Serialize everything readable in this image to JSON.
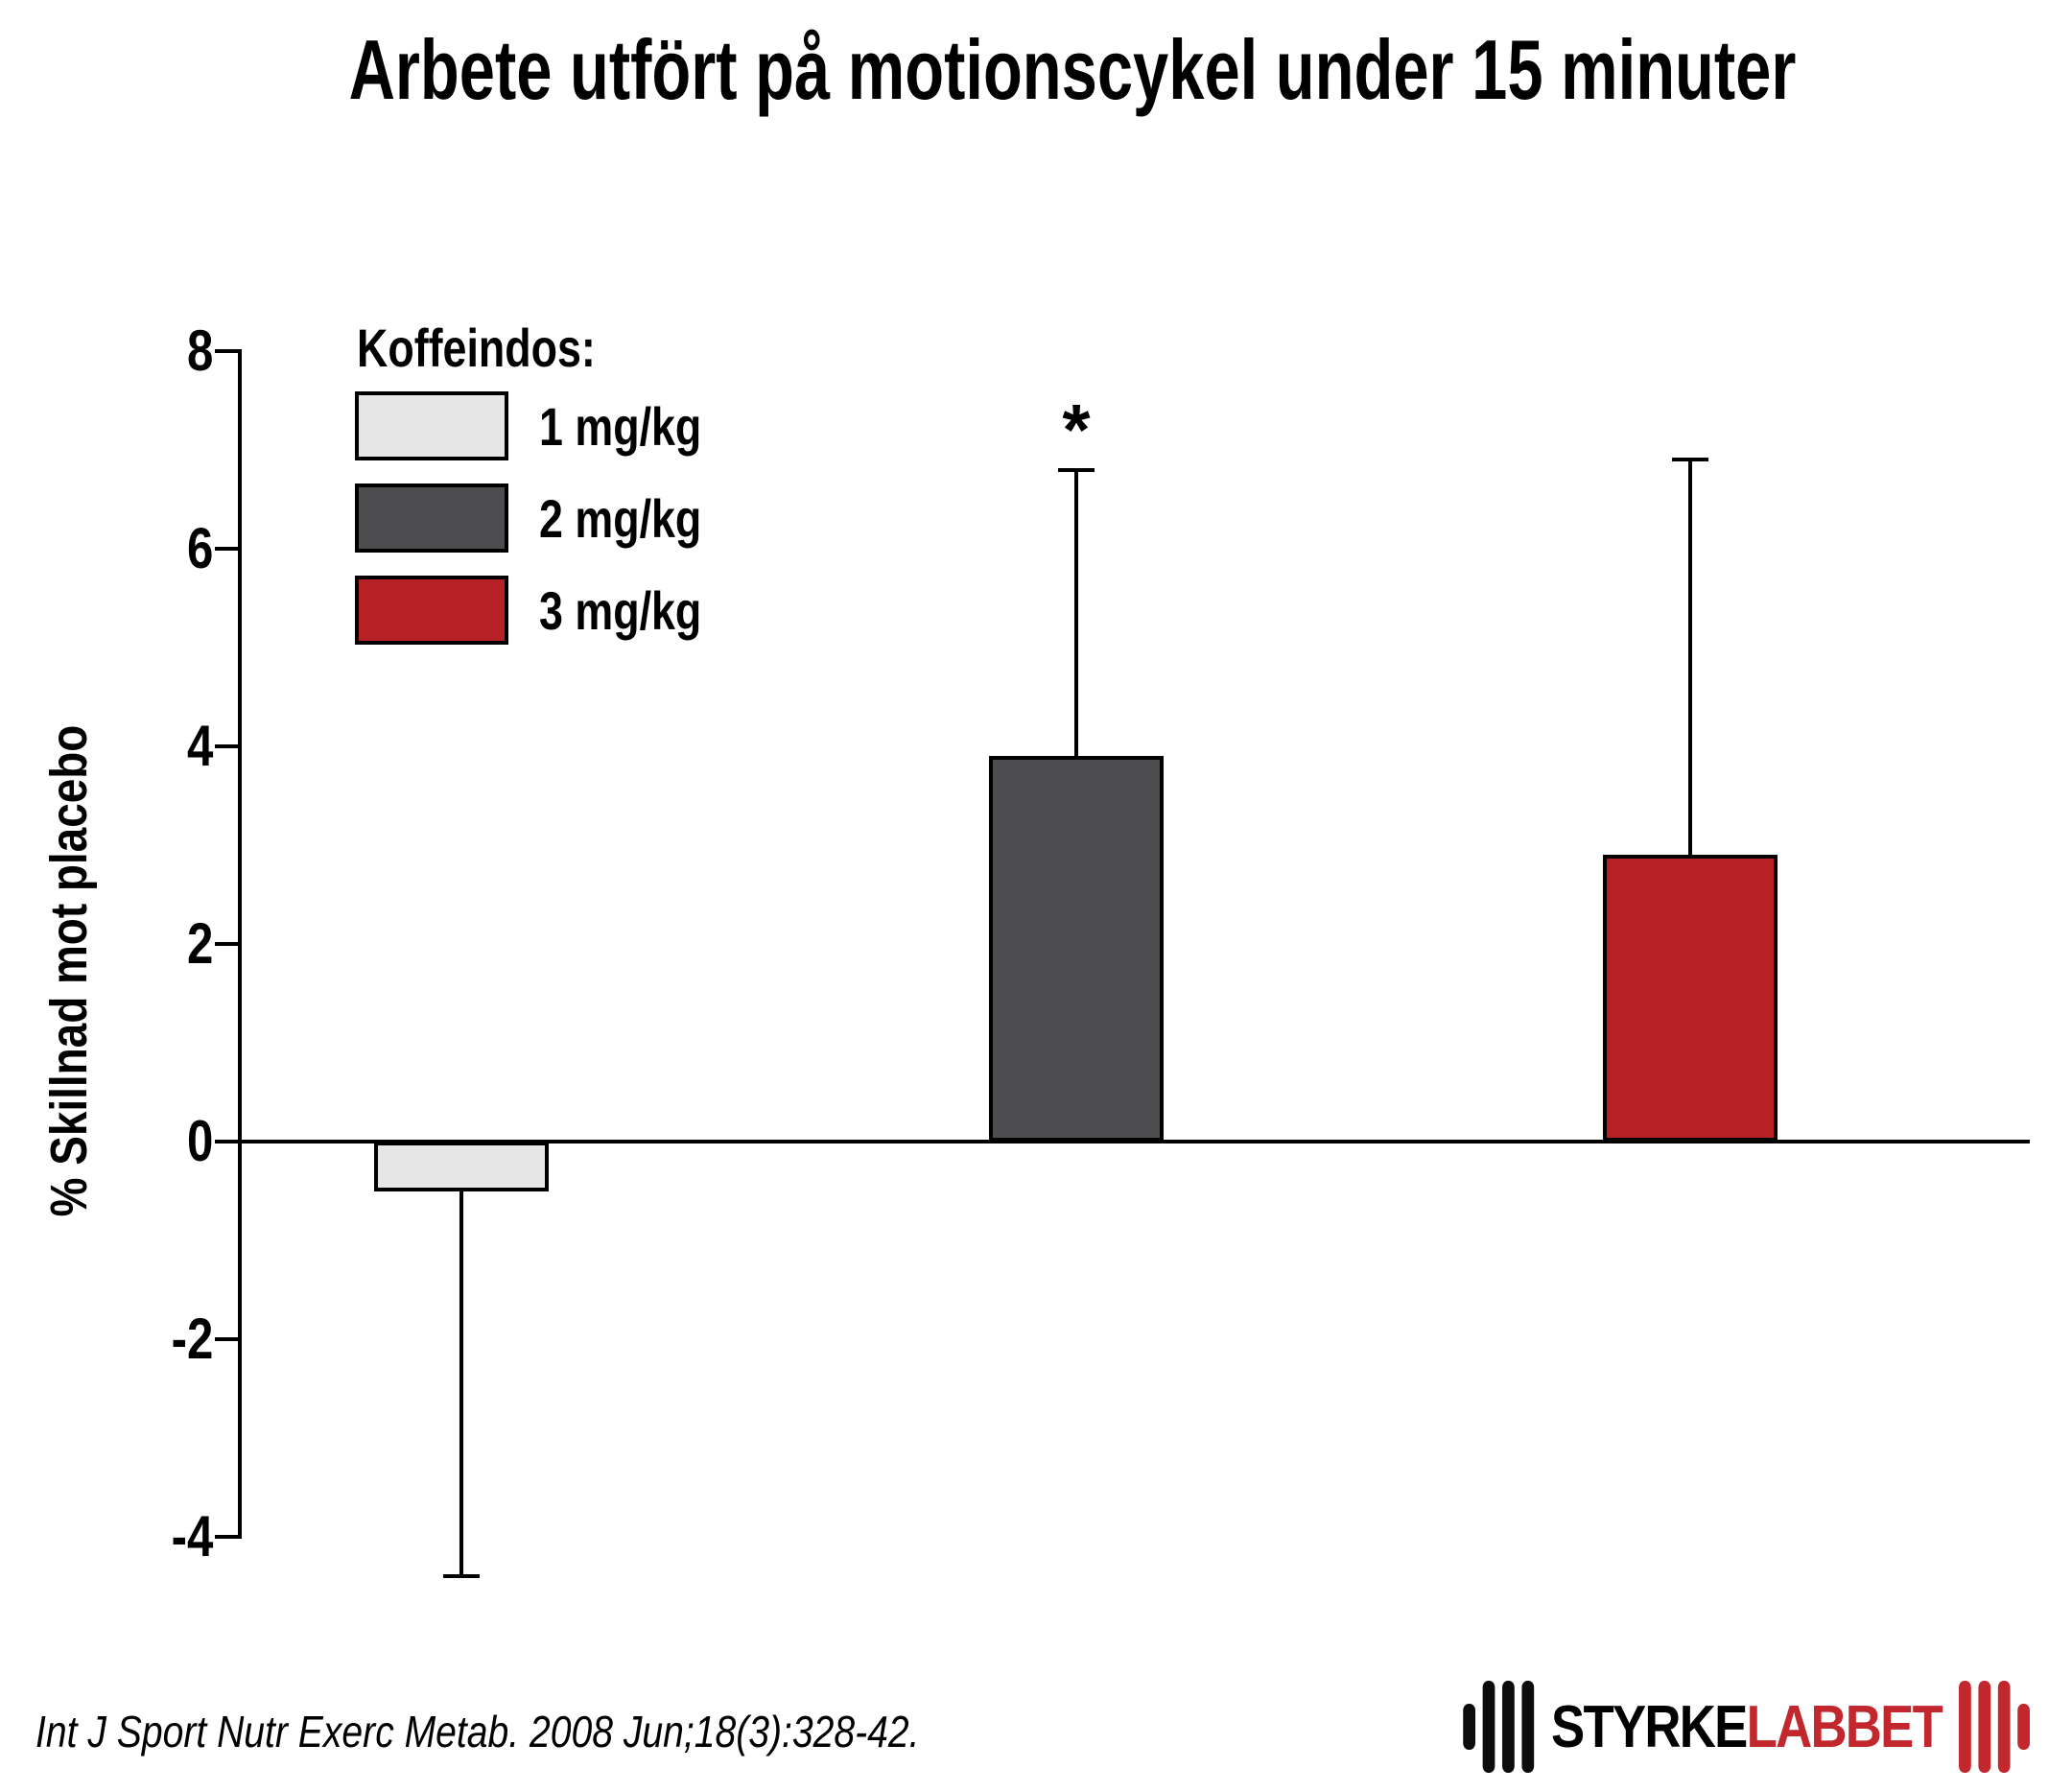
{
  "title": "Arbete utfört på motionscykel under 15 minuter",
  "legend": {
    "title": "Koffeindos:",
    "items": [
      {
        "label": "1 mg/kg",
        "color": "#e6e6e6"
      },
      {
        "label": "2 mg/kg",
        "color": "#4d4d4f"
      },
      {
        "label": "3 mg/kg",
        "color": "#b72025"
      }
    ]
  },
  "citation": "Int J Sport Nutr Exerc Metab. 2008 Jun;18(3):328-42.",
  "logo": {
    "text_black": "STYRKE",
    "text_red": "LABBET",
    "red": "#c1272d"
  },
  "chart_data": {
    "type": "bar",
    "title": "Arbete utfört på motionscykel under 15 minuter",
    "xlabel": "",
    "ylabel": "% Skillnad mot placebo",
    "legend_title": "Koffeindos:",
    "legend_position": "upper-left",
    "grid": false,
    "categories": [
      "1 mg/kg",
      "2 mg/kg",
      "3 mg/kg"
    ],
    "values": [
      -0.5,
      3.9,
      2.9
    ],
    "whisker_ends": [
      -4.4,
      6.8,
      6.9
    ],
    "significance": [
      "",
      "*",
      ""
    ],
    "bar_colors": [
      "#e6e6e6",
      "#4d4d4f",
      "#b72025"
    ],
    "yticks": [
      8,
      6,
      4,
      2,
      0,
      -2,
      -4
    ],
    "ylim": [
      -5,
      8.5
    ]
  }
}
